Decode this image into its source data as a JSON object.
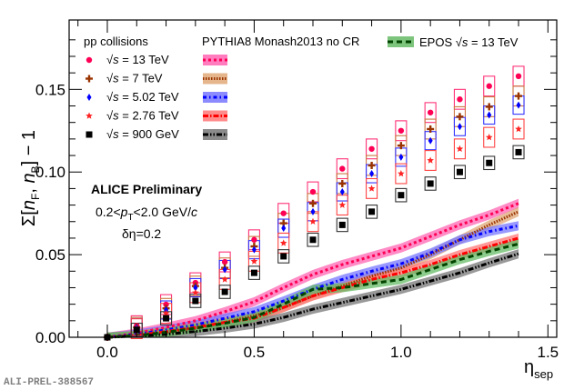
{
  "chart_data": {
    "type": "scatter",
    "title": "",
    "xlabel": "η_sep",
    "ylabel": "Σ[n_F, n_B] − 1",
    "xlim": [
      -0.13,
      1.53
    ],
    "ylim": [
      0.0,
      0.192
    ],
    "xticks": [
      0.0,
      0.5,
      1.0,
      1.5
    ],
    "xtick_labels": [
      "0.0",
      "0.5",
      "1.0",
      "1.5"
    ],
    "yticks": [
      0.0,
      0.05,
      0.1,
      0.15
    ],
    "ytick_labels": [
      "0.00",
      "0.05",
      "0.10",
      "0.15"
    ],
    "grid": false,
    "legend_title_data": "pp collisions",
    "legend_title_model": "PYTHIA8 Monash2013 no CR",
    "legend_placement": "top",
    "annotations": [
      "ALICE Preliminary",
      "0.2<p_T<2.0 GeV/c",
      "δη=0.2"
    ],
    "watermark": "ALI-PREL-388567",
    "x": [
      0.0,
      0.1,
      0.2,
      0.3,
      0.4,
      0.5,
      0.6,
      0.7,
      0.8,
      0.9,
      1.0,
      1.1,
      1.2,
      1.3,
      1.4
    ],
    "series": [
      {
        "name": "√s = 13 TeV",
        "label_prefix": "√",
        "label_var": "s",
        "label_rest": " = 13 TeV",
        "marker": "circle",
        "color": "#ff0055",
        "box_color": "#ff3377",
        "values": [
          0.0,
          0.007,
          0.0198,
          0.033,
          0.0456,
          0.059,
          0.075,
          0.088,
          0.102,
          0.114,
          0.125,
          0.136,
          0.144,
          0.152,
          0.158
        ],
        "syst": 0.006
      },
      {
        "name": "√s = 7 TeV",
        "label_prefix": "√",
        "label_var": "s",
        "label_rest": " = 7 TeV",
        "marker": "cross",
        "color": "#993300",
        "box_color": "#cc7744",
        "values": [
          0.0,
          0.006,
          0.0175,
          0.031,
          0.042,
          0.055,
          0.069,
          0.081,
          0.093,
          0.104,
          0.116,
          0.126,
          0.1335,
          0.1395,
          0.146
        ],
        "syst": 0.006
      },
      {
        "name": "√s = 5.02 TeV",
        "label_prefix": "√",
        "label_var": "s",
        "label_rest": " = 5.02 TeV",
        "marker": "diamond",
        "color": "#0000ff",
        "box_color": "#3333ff",
        "values": [
          0.0,
          0.0058,
          0.0165,
          0.03,
          0.041,
          0.053,
          0.066,
          0.076,
          0.088,
          0.099,
          0.109,
          0.119,
          0.1275,
          0.1345,
          0.1405
        ],
        "syst": 0.0055
      },
      {
        "name": "√s = 2.76 TeV",
        "label_prefix": "√",
        "label_var": "s",
        "label_rest": " = 2.76 TeV",
        "marker": "star",
        "color": "#ff2222",
        "box_color": "#ff4444",
        "values": [
          0.0,
          0.0052,
          0.0145,
          0.027,
          0.035,
          0.046,
          0.057,
          0.07,
          0.08,
          0.09,
          0.099,
          0.107,
          0.114,
          0.121,
          0.126
        ],
        "syst": 0.006
      },
      {
        "name": "√s = 900 GeV",
        "label_prefix": "√",
        "label_var": "s",
        "label_rest": " = 900 GeV",
        "marker": "square",
        "color": "#000000",
        "box_color": "#333333",
        "values": [
          0.0,
          0.0045,
          0.0115,
          0.022,
          0.0275,
          0.039,
          0.049,
          0.059,
          0.068,
          0.076,
          0.086,
          0.093,
          0.1,
          0.1055,
          0.112
        ],
        "syst": 0.004
      }
    ],
    "models": [
      {
        "name": "PYTHIA8 √s = 13 TeV",
        "line_color": "#ff0055",
        "band_color": "#ff66b3",
        "dash": "3,3",
        "values": [
          0.0,
          0.0025,
          0.006,
          0.01,
          0.0155,
          0.0215,
          0.03,
          0.038,
          0.044,
          0.049,
          0.054,
          0.061,
          0.068,
          0.074,
          0.081
        ]
      },
      {
        "name": "PYTHIA8 √s = 7 TeV",
        "line_color": "#993300",
        "band_color": "#e0a878",
        "dash": "1.5,1.5",
        "values": [
          0.0,
          0.0012,
          0.003,
          0.0055,
          0.009,
          0.013,
          0.018,
          0.025,
          0.031,
          0.037,
          0.042,
          0.05,
          0.059,
          0.068,
          0.076
        ]
      },
      {
        "name": "PYTHIA8 √s = 5.02 TeV",
        "line_color": "#0000ff",
        "band_color": "#7777ff",
        "dash": "4,3,1.5,3",
        "values": [
          0.0,
          0.0018,
          0.0045,
          0.0075,
          0.0115,
          0.0155,
          0.022,
          0.029,
          0.035,
          0.04,
          0.0445,
          0.051,
          0.059,
          0.064,
          0.0675
        ]
      },
      {
        "name": "PYTHIA8 √s = 2.76 TeV",
        "line_color": "#ff0000",
        "band_color": "#ff7777",
        "dash": "6,2,1.5,2",
        "values": [
          0.0,
          0.0012,
          0.0035,
          0.006,
          0.009,
          0.0115,
          0.018,
          0.025,
          0.03,
          0.035,
          0.039,
          0.044,
          0.05,
          0.055,
          0.06
        ]
      },
      {
        "name": "PYTHIA8 √s = 900 GeV",
        "line_color": "#000000",
        "band_color": "#777777",
        "dash": "6,2,1.5,2,1.5,2",
        "values": [
          0.0,
          0.0008,
          0.0018,
          0.0035,
          0.0055,
          0.008,
          0.012,
          0.017,
          0.021,
          0.025,
          0.029,
          0.034,
          0.039,
          0.045,
          0.0505
        ]
      },
      {
        "name": "EPOS √s = 13 TeV",
        "line_color": "#004400",
        "band_color": "#66bb66",
        "dash": "6,4",
        "values": [
          0.0,
          0.001,
          0.003,
          0.0055,
          0.0085,
          0.012,
          0.02,
          0.029,
          0.03,
          0.0325,
          0.035,
          0.041,
          0.047,
          0.052,
          0.0565
        ]
      }
    ],
    "epos_legend": {
      "prefix": "EPOS ",
      "root": "√",
      "var": "s",
      "rest": " = 13 TeV"
    }
  }
}
